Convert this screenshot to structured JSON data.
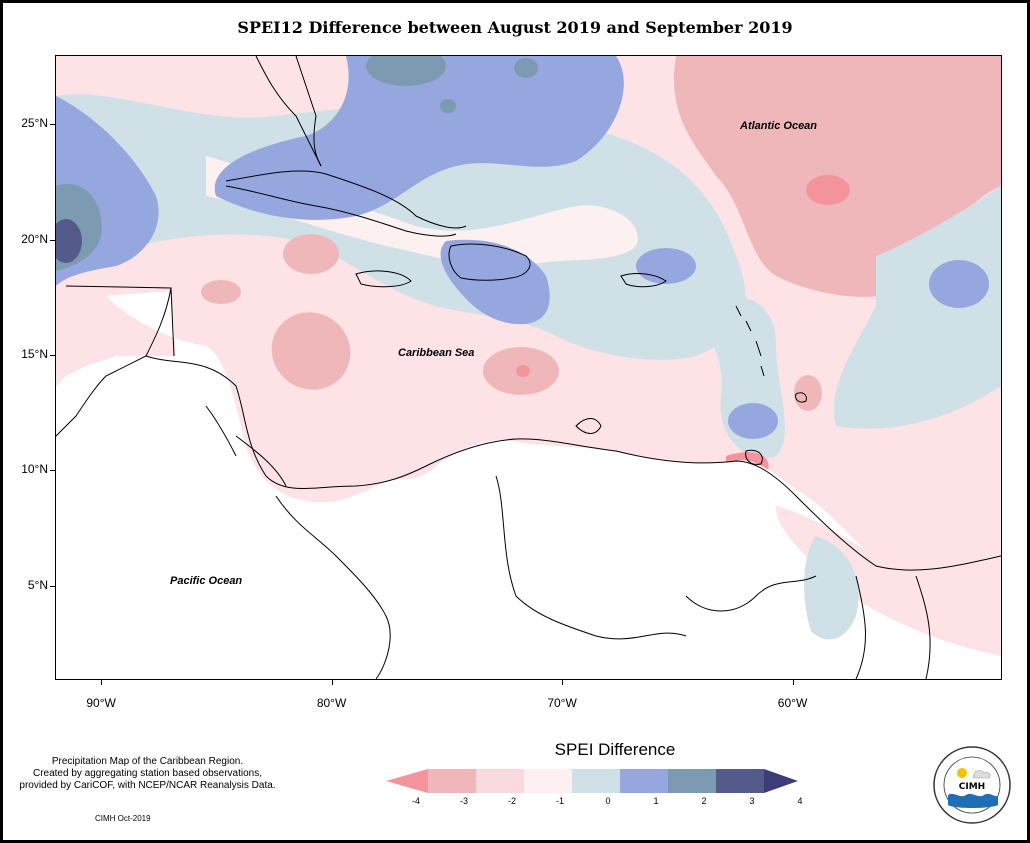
{
  "title": "SPEI12 Difference between August 2019 and September 2019",
  "axes": {
    "lat_ticks": [
      {
        "label": "25°N",
        "lat": 25
      },
      {
        "label": "20°N",
        "lat": 20
      },
      {
        "label": "15°N",
        "lat": 15
      },
      {
        "label": "10°N",
        "lat": 10
      },
      {
        "label": "5°N",
        "lat": 5
      }
    ],
    "lon_ticks": [
      {
        "label": "90°W",
        "lon": -90
      },
      {
        "label": "80°W",
        "lon": -80
      },
      {
        "label": "70°W",
        "lon": -70
      },
      {
        "label": "60°W",
        "lon": -60
      }
    ]
  },
  "places": {
    "atlantic": "Atlantic Ocean",
    "caribbean": "Caribbean Sea",
    "pacific": "Pacific Ocean"
  },
  "credit": {
    "lines": [
      "Precipitation Map of the Caribbean Region.",
      "Created by aggregating station based observations,",
      "provided by CariCOF, with NCEP/NCAR Reanalysis Data."
    ],
    "stamp": "CIMH Oct-2019"
  },
  "legend": {
    "title": "SPEI Difference",
    "ticks": [
      "-4",
      "-3",
      "-2",
      "-1",
      "0",
      "1",
      "2",
      "3",
      "4"
    ],
    "colors": [
      "#f4939b",
      "#f0b7ba",
      "#fad9df",
      "#fdf0f0",
      "#cfe1e6",
      "#96a6df",
      "#7d9ab3",
      "#545b8a",
      "#3c3c78"
    ]
  },
  "logo": {
    "text": "CIMH"
  }
}
